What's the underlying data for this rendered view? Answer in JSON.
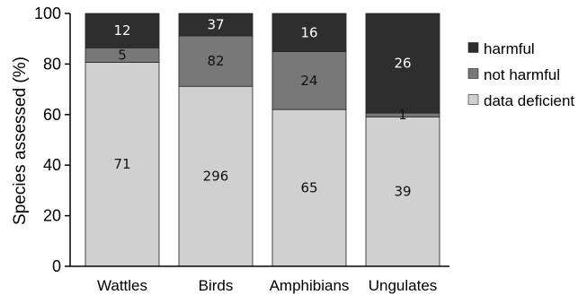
{
  "chart_data": {
    "type": "bar",
    "stacked": true,
    "ylabel": "Species assessed (%)",
    "xlabel": "",
    "ylim": [
      0,
      100
    ],
    "yticks": [
      0,
      20,
      40,
      60,
      80,
      100
    ],
    "categories": [
      "Wattles",
      "Birds",
      "Amphibians",
      "Ungulates"
    ],
    "legend_position": "right",
    "series": [
      {
        "name": "data deficient",
        "color": "#d0d0d0",
        "label_color": "#111111",
        "percent": [
          80.7,
          71.2,
          62.0,
          59.1
        ],
        "labels": [
          "71",
          "296",
          "65",
          "39"
        ]
      },
      {
        "name": "not harmful",
        "color": "#787878",
        "label_color": "#111111",
        "percent": [
          5.7,
          19.9,
          22.9,
          1.5
        ],
        "labels": [
          "5",
          "82",
          "24",
          "1"
        ]
      },
      {
        "name": "harmful",
        "color": "#2e2e2e",
        "label_color": "#ffffff",
        "percent": [
          13.6,
          8.9,
          15.1,
          39.4
        ],
        "labels": [
          "12",
          "37",
          "16",
          "26"
        ]
      }
    ]
  }
}
